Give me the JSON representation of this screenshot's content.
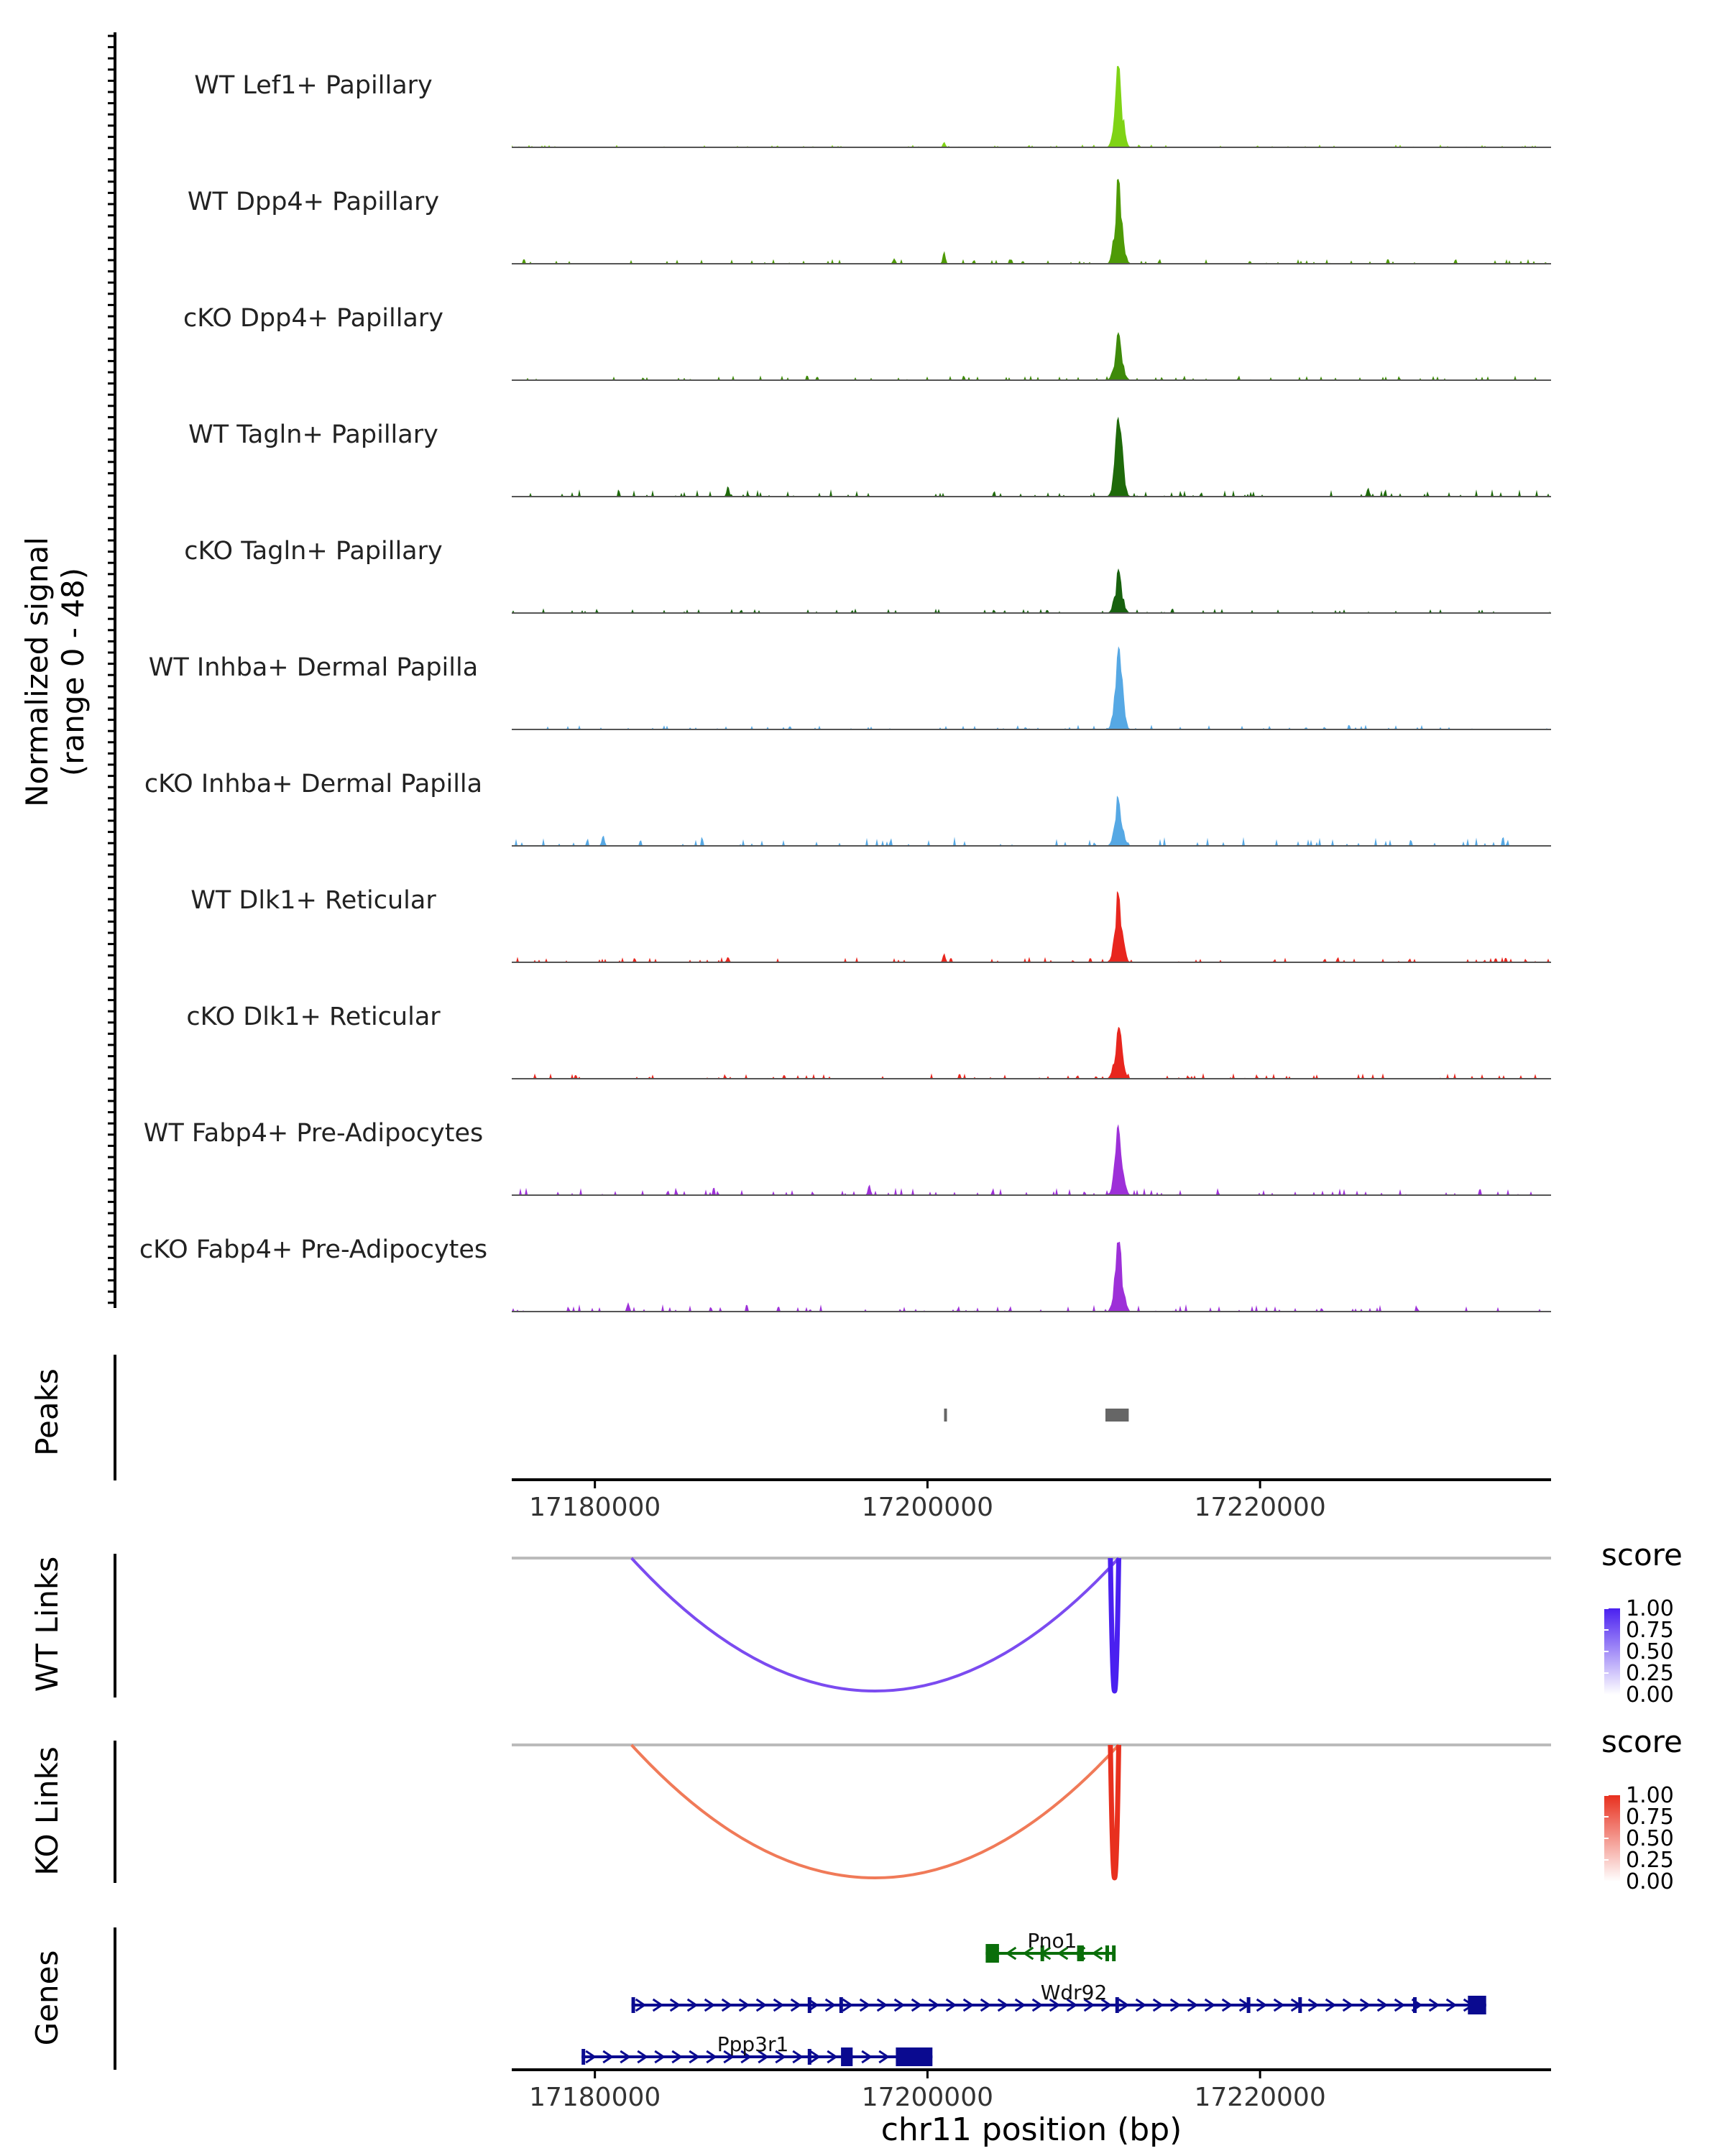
{
  "chart_data": {
    "type": "genome-track",
    "xlabel": "chr11 position (bp)",
    "xlim": [
      17175000,
      17237500
    ],
    "x_ticks": [
      17180000,
      17200000,
      17220000
    ],
    "x_tick_labels": [
      "17180000",
      "17200000",
      "17220000"
    ],
    "coverage": {
      "ylabel_line1": "Normalized signal",
      "ylabel_line2": "(range 0 - 48)",
      "ylim": [
        0,
        48
      ],
      "tracks": [
        {
          "name": "WT Lef1+ Papillary",
          "color": "#7FD315",
          "main_peak": 44,
          "noise": 1.5,
          "minor": [
            [
              17201000,
              3
            ]
          ],
          "seed": 1
        },
        {
          "name": "WT Dpp4+ Papillary",
          "color": "#4E9A06",
          "main_peak": 46,
          "noise": 2.5,
          "minor": [
            [
              17201000,
              7
            ],
            [
              17198000,
              3
            ]
          ],
          "seed": 2
        },
        {
          "name": "cKO Dpp4+ Papillary",
          "color": "#3E8A0A",
          "main_peak": 27,
          "noise": 2.5,
          "minor": [],
          "seed": 3
        },
        {
          "name": "WT Tagln+ Papillary",
          "color": "#1E6A0A",
          "main_peak": 47,
          "noise": 4,
          "minor": [
            [
              17226500,
              5
            ],
            [
              17188000,
              6
            ]
          ],
          "seed": 4
        },
        {
          "name": "cKO Tagln+ Papillary",
          "color": "#17610E",
          "main_peak": 24,
          "noise": 2.5,
          "minor": [],
          "seed": 5
        },
        {
          "name": "WT Inhba+ Dermal Papilla",
          "color": "#56A8E4",
          "main_peak": 47,
          "noise": 2.5,
          "minor": [],
          "seed": 6
        },
        {
          "name": "cKO Inhba+ Dermal Papilla",
          "color": "#56A8E4",
          "main_peak": 27,
          "noise": 5,
          "minor": [
            [
              17180500,
              6
            ]
          ],
          "seed": 7
        },
        {
          "name": "WT Dlk1+ Reticular",
          "color": "#E8261E",
          "main_peak": 40,
          "noise": 3,
          "minor": [
            [
              17201000,
              5
            ],
            [
              17188000,
              3
            ]
          ],
          "seed": 8
        },
        {
          "name": "cKO Dlk1+ Reticular",
          "color": "#E8261E",
          "main_peak": 29,
          "noise": 3,
          "minor": [],
          "seed": 9
        },
        {
          "name": "WT Fabp4+ Pre-Adipocytes",
          "color": "#9D30D8",
          "main_peak": 40,
          "noise": 4,
          "minor": [
            [
              17196500,
              6
            ]
          ],
          "seed": 10
        },
        {
          "name": "cKO Fabp4+ Pre-Adipocytes",
          "color": "#9D30D8",
          "main_peak": 41,
          "noise": 4,
          "minor": [
            [
              17182000,
              5
            ]
          ],
          "seed": 11
        }
      ]
    },
    "peaks": {
      "label": "Peaks",
      "regions": [
        [
          17201000,
          17201150
        ],
        [
          17210700,
          17212100
        ]
      ]
    },
    "links": [
      {
        "label": "WT Links",
        "legend_title": "score",
        "legend_ticks": [
          "1.00",
          "0.75",
          "0.50",
          "0.25",
          "0.00"
        ],
        "color_high": "#4A20F0",
        "color_arc": "#7B4BF0",
        "arcs": [
          [
            17182200,
            17211500
          ],
          [
            17211000,
            17211500
          ]
        ]
      },
      {
        "label": "KO Links",
        "legend_title": "score",
        "legend_ticks": [
          "1.00",
          "0.75",
          "0.50",
          "0.25",
          "0.00"
        ],
        "color_high": "#E8301E",
        "color_arc": "#F07A58",
        "arcs": [
          [
            17182200,
            17211500
          ],
          [
            17211000,
            17211500
          ]
        ]
      }
    ],
    "genes": {
      "label": "Genes",
      "items": [
        {
          "name": "Pno1",
          "start": 17203500,
          "end": 17211300,
          "strand": "-",
          "color": "#0A6E0A",
          "exons": [
            [
              17203500,
              17204300
            ],
            [
              17206800,
              17207000
            ],
            [
              17209000,
              17209400
            ],
            [
              17210700,
              17210900
            ],
            [
              17211100,
              17211300
            ]
          ]
        },
        {
          "name": "Wdr92",
          "start": 17182200,
          "end": 17233600,
          "strand": "+",
          "color": "#0A0A90",
          "exons": [
            [
              17182200,
              17182400
            ],
            [
              17192800,
              17193000
            ],
            [
              17194700,
              17194900
            ],
            [
              17211300,
              17211500
            ],
            [
              17219200,
              17219400
            ],
            [
              17222300,
              17222500
            ],
            [
              17229200,
              17229400
            ],
            [
              17232500,
              17233600
            ]
          ]
        },
        {
          "name": "Ppp3r1",
          "start": 17179200,
          "end": 17200300,
          "strand": "+",
          "color": "#0A0A90",
          "exons": [
            [
              17179200,
              17179400
            ],
            [
              17192800,
              17193000
            ],
            [
              17194800,
              17195500
            ],
            [
              17198100,
              17200300
            ]
          ]
        }
      ]
    }
  }
}
